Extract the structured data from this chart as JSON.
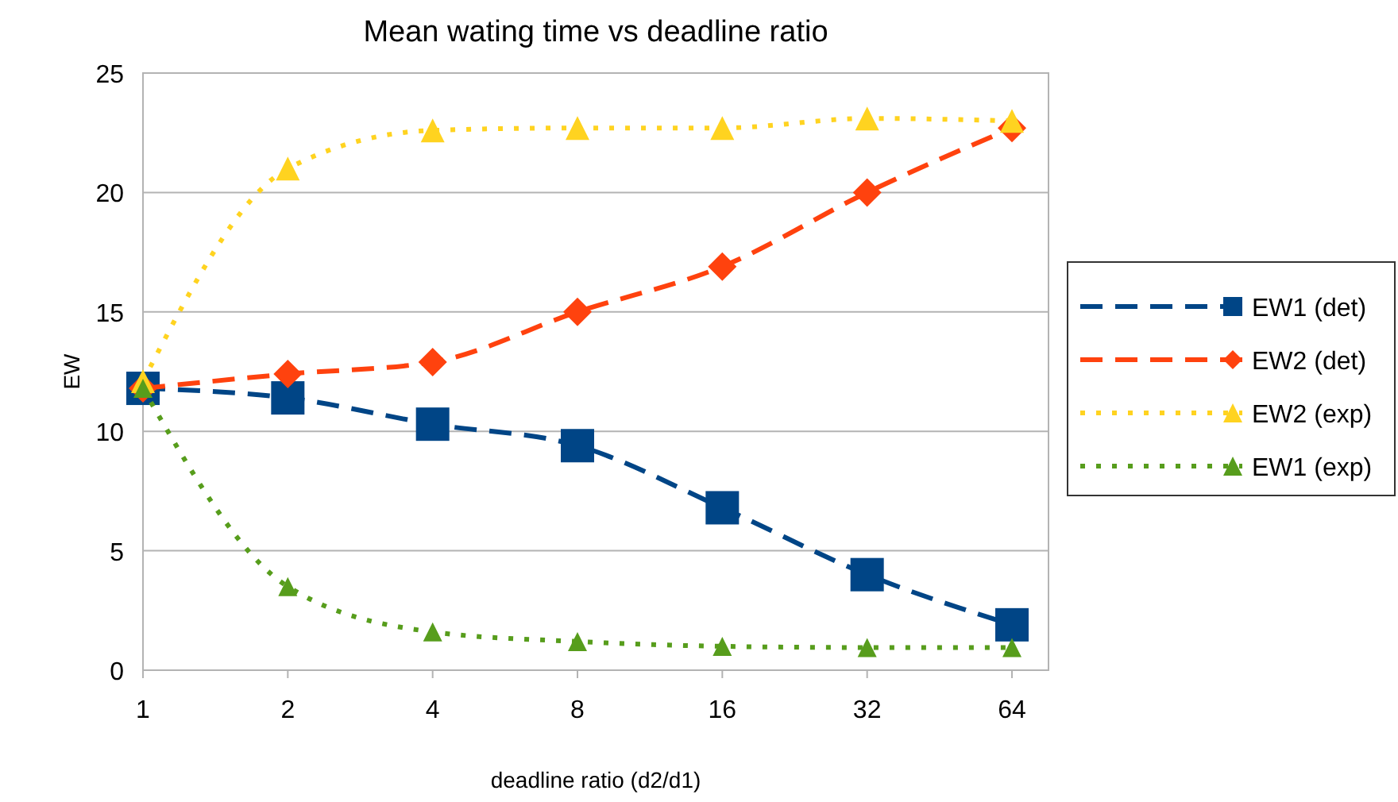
{
  "chart_data": {
    "type": "line",
    "title": "Mean wating time vs deadline ratio",
    "xlabel": "deadline ratio (d2/d1)",
    "ylabel": "EW",
    "categories": [
      "1",
      "2",
      "4",
      "8",
      "16",
      "32",
      "64"
    ],
    "ylim": [
      0,
      25
    ],
    "yticks": [
      0,
      5,
      10,
      15,
      20,
      25
    ],
    "grid": "y",
    "legend": "right",
    "series": [
      {
        "name": "EW1 (det)",
        "color": "#004586",
        "marker": "square",
        "line_style": "dashed",
        "values": [
          11.8,
          11.4,
          10.3,
          9.4,
          6.8,
          4.0,
          1.9
        ]
      },
      {
        "name": "EW2 (det)",
        "color": "#ff420e",
        "marker": "diamond",
        "line_style": "dashed",
        "values": [
          11.8,
          12.4,
          12.9,
          15.0,
          16.9,
          20.0,
          22.7
        ]
      },
      {
        "name": "EW2 (exp)",
        "color": "#ffd320",
        "marker": "triangle",
        "line_style": "dotted",
        "values": [
          12.1,
          21.0,
          22.6,
          22.7,
          22.7,
          23.1,
          23.0
        ]
      },
      {
        "name": "EW1 (exp)",
        "color": "#579d1c",
        "marker": "triangle",
        "line_style": "dotted",
        "values": [
          11.8,
          3.5,
          1.6,
          1.2,
          1.0,
          0.95,
          0.95
        ]
      }
    ]
  }
}
